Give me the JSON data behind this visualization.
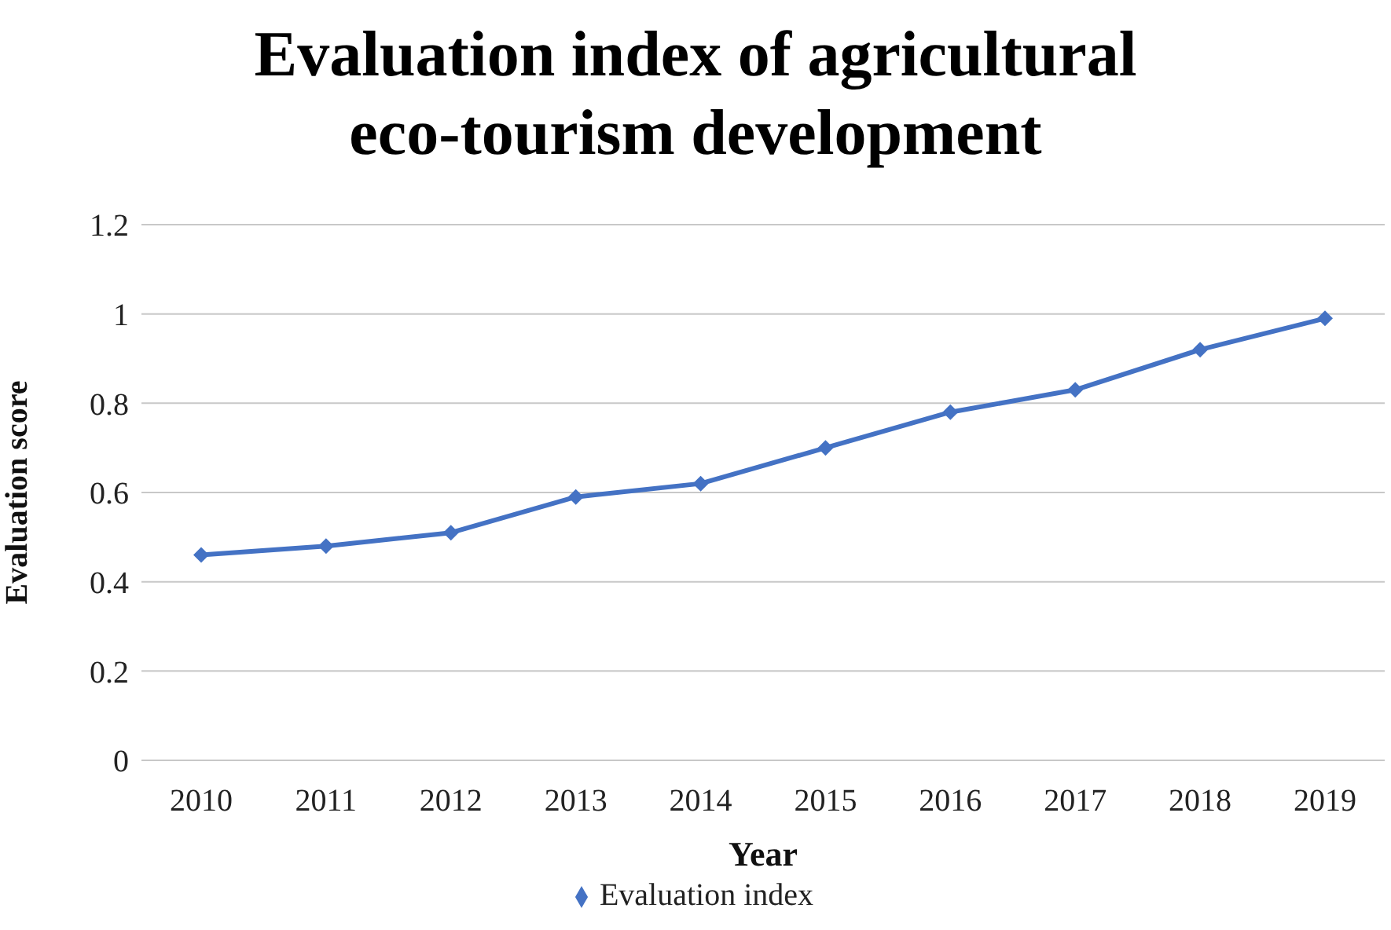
{
  "chart_data": {
    "type": "line",
    "title": "Evaluation index of agricultural eco-tourism development",
    "xlabel": "Year",
    "ylabel": "Evaluation score",
    "categories": [
      "2010",
      "2011",
      "2012",
      "2013",
      "2014",
      "2015",
      "2016",
      "2017",
      "2018",
      "2019"
    ],
    "series": [
      {
        "name": "Evaluation index",
        "color": "#4472c4",
        "values": [
          0.46,
          0.48,
          0.51,
          0.59,
          0.62,
          0.7,
          0.78,
          0.83,
          0.92,
          0.99
        ]
      }
    ],
    "ylim": [
      0,
      1.2
    ],
    "yticks": [
      0,
      0.2,
      0.4,
      0.6,
      0.8,
      1,
      1.2
    ],
    "grid": "y",
    "legend": "bottom",
    "marker": "diamond",
    "line_style": "solid"
  }
}
